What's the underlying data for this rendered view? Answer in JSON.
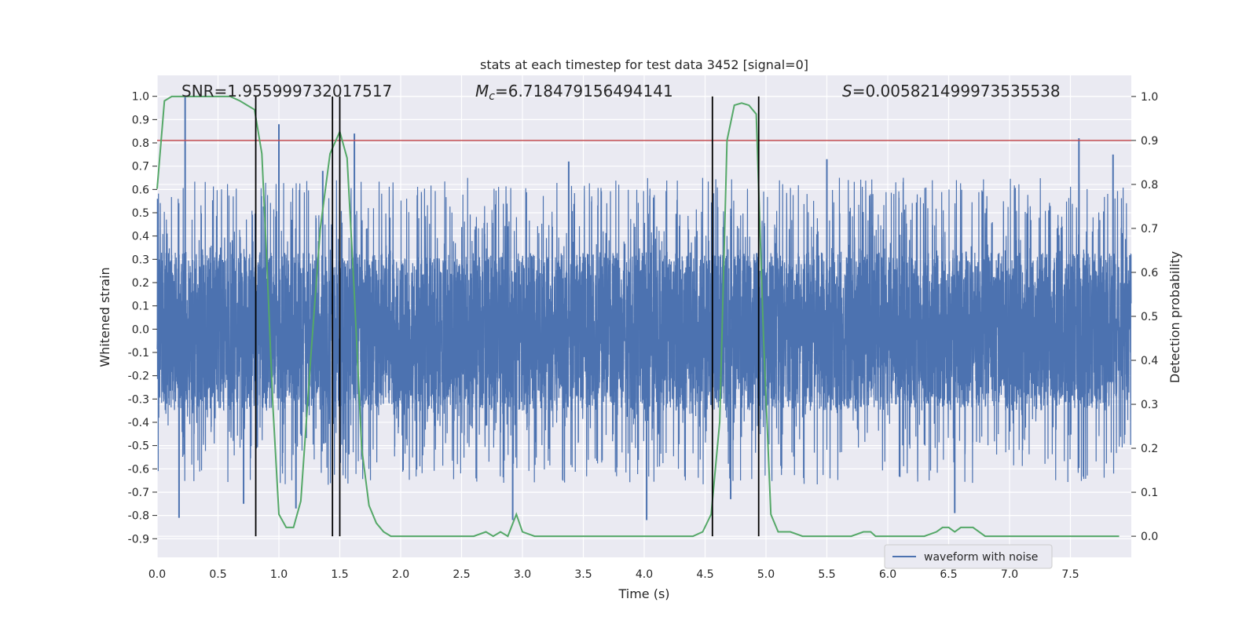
{
  "chart_data": {
    "type": "line",
    "title": "stats at each timestep for test data 3452 [signal=0]",
    "xlabel": "Time (s)",
    "ylabel_left": "Whitened strain",
    "ylabel_right": "Detection probability",
    "xlim": [
      0.0,
      8.0
    ],
    "ylim_left": [
      -0.98,
      1.09
    ],
    "ylim_right": [
      -0.048,
      1.048
    ],
    "xticks": [
      "0.0",
      "0.5",
      "1.0",
      "1.5",
      "2.0",
      "2.5",
      "3.0",
      "3.5",
      "4.0",
      "4.5",
      "5.0",
      "5.5",
      "6.0",
      "6.5",
      "7.0",
      "7.5"
    ],
    "yticks_left": [
      "1.0",
      "0.9",
      "0.8",
      "0.7",
      "0.6",
      "0.5",
      "0.4",
      "0.3",
      "0.2",
      "0.1",
      "0.0",
      "-0.1",
      "-0.2",
      "-0.3",
      "-0.4",
      "-0.5",
      "-0.6",
      "-0.7",
      "-0.8",
      "-0.9"
    ],
    "yticks_right": [
      "1.0",
      "0.9",
      "0.8",
      "0.7",
      "0.6",
      "0.5",
      "0.4",
      "0.3",
      "0.2",
      "0.1",
      "0.0"
    ],
    "grid": true,
    "annotations": {
      "snr_label": "SNR=1.955999732017517",
      "mc_symbol": "M",
      "mc_subscript": "c",
      "mc_value": "=6.718479156494141",
      "s_symbol": "S",
      "s_value": "=0.005821499973535538"
    },
    "threshold": {
      "value": 0.9,
      "axis": "right",
      "color": "#c44e52"
    },
    "event_lines": [
      0.81,
      1.44,
      1.5,
      4.56,
      4.94
    ],
    "strain_series": {
      "name": "waveform with noise",
      "color": "#4c72b0",
      "n_samples": 8000,
      "band_low": -0.35,
      "band_high": 0.33,
      "spikes": [
        {
          "t": 0.23,
          "v": 1.0
        },
        {
          "t": 0.18,
          "v": -0.81
        },
        {
          "t": 0.71,
          "v": -0.75
        },
        {
          "t": 1.0,
          "v": 0.88
        },
        {
          "t": 1.14,
          "v": -0.77
        },
        {
          "t": 1.62,
          "v": 0.84
        },
        {
          "t": 1.36,
          "v": 0.68
        },
        {
          "t": 2.92,
          "v": -0.82
        },
        {
          "t": 4.02,
          "v": -0.82
        },
        {
          "t": 4.71,
          "v": -0.73
        },
        {
          "t": 6.55,
          "v": -0.79
        },
        {
          "t": 7.57,
          "v": 0.82
        },
        {
          "t": 7.85,
          "v": 0.75
        },
        {
          "t": 5.5,
          "v": 0.73
        },
        {
          "t": 3.38,
          "v": 0.72
        }
      ]
    },
    "probability_series": {
      "name": "detection probability",
      "color": "#55a868",
      "x": [
        0.0,
        0.06,
        0.12,
        0.2,
        0.3,
        0.4,
        0.5,
        0.6,
        0.68,
        0.74,
        0.8,
        0.86,
        0.9,
        0.95,
        1.0,
        1.06,
        1.12,
        1.18,
        1.26,
        1.34,
        1.42,
        1.5,
        1.56,
        1.62,
        1.68,
        1.74,
        1.8,
        1.86,
        1.92,
        2.0,
        2.1,
        2.2,
        2.3,
        2.4,
        2.5,
        2.6,
        2.7,
        2.76,
        2.82,
        2.88,
        2.95,
        3.0,
        3.1,
        3.2,
        3.3,
        3.4,
        3.5,
        3.6,
        3.7,
        3.8,
        3.9,
        4.0,
        4.1,
        4.2,
        4.3,
        4.4,
        4.48,
        4.55,
        4.62,
        4.68,
        4.74,
        4.8,
        4.86,
        4.92,
        4.98,
        5.04,
        5.1,
        5.2,
        5.3,
        5.4,
        5.5,
        5.6,
        5.7,
        5.8,
        5.86,
        5.9,
        5.95,
        6.0,
        6.1,
        6.2,
        6.3,
        6.4,
        6.45,
        6.5,
        6.55,
        6.6,
        6.7,
        6.8,
        6.9,
        7.0,
        7.1,
        7.2,
        7.3,
        7.4,
        7.5,
        7.6,
        7.7,
        7.8,
        7.9
      ],
      "y": [
        0.79,
        0.99,
        1.0,
        1.0,
        1.0,
        1.0,
        1.0,
        1.0,
        0.99,
        0.98,
        0.97,
        0.87,
        0.63,
        0.3,
        0.05,
        0.02,
        0.02,
        0.08,
        0.4,
        0.7,
        0.87,
        0.92,
        0.86,
        0.55,
        0.2,
        0.07,
        0.03,
        0.01,
        0.0,
        0.0,
        0.0,
        0.0,
        0.0,
        0.0,
        0.0,
        0.0,
        0.01,
        0.0,
        0.01,
        0.0,
        0.05,
        0.01,
        0.0,
        0.0,
        0.0,
        0.0,
        0.0,
        0.0,
        0.0,
        0.0,
        0.0,
        0.0,
        0.0,
        0.0,
        0.0,
        0.0,
        0.01,
        0.05,
        0.26,
        0.9,
        0.98,
        0.985,
        0.98,
        0.96,
        0.45,
        0.05,
        0.01,
        0.01,
        0.0,
        0.0,
        0.0,
        0.0,
        0.0,
        0.01,
        0.01,
        0.0,
        0.0,
        0.0,
        0.0,
        0.0,
        0.0,
        0.01,
        0.02,
        0.02,
        0.01,
        0.02,
        0.02,
        0.0,
        0.0,
        0.0,
        0.0,
        0.0,
        0.0,
        0.0,
        0.0,
        0.0,
        0.0,
        0.0,
        0.0
      ]
    },
    "legend": {
      "entries": [
        "waveform with noise"
      ],
      "placement": "lower-right"
    }
  }
}
